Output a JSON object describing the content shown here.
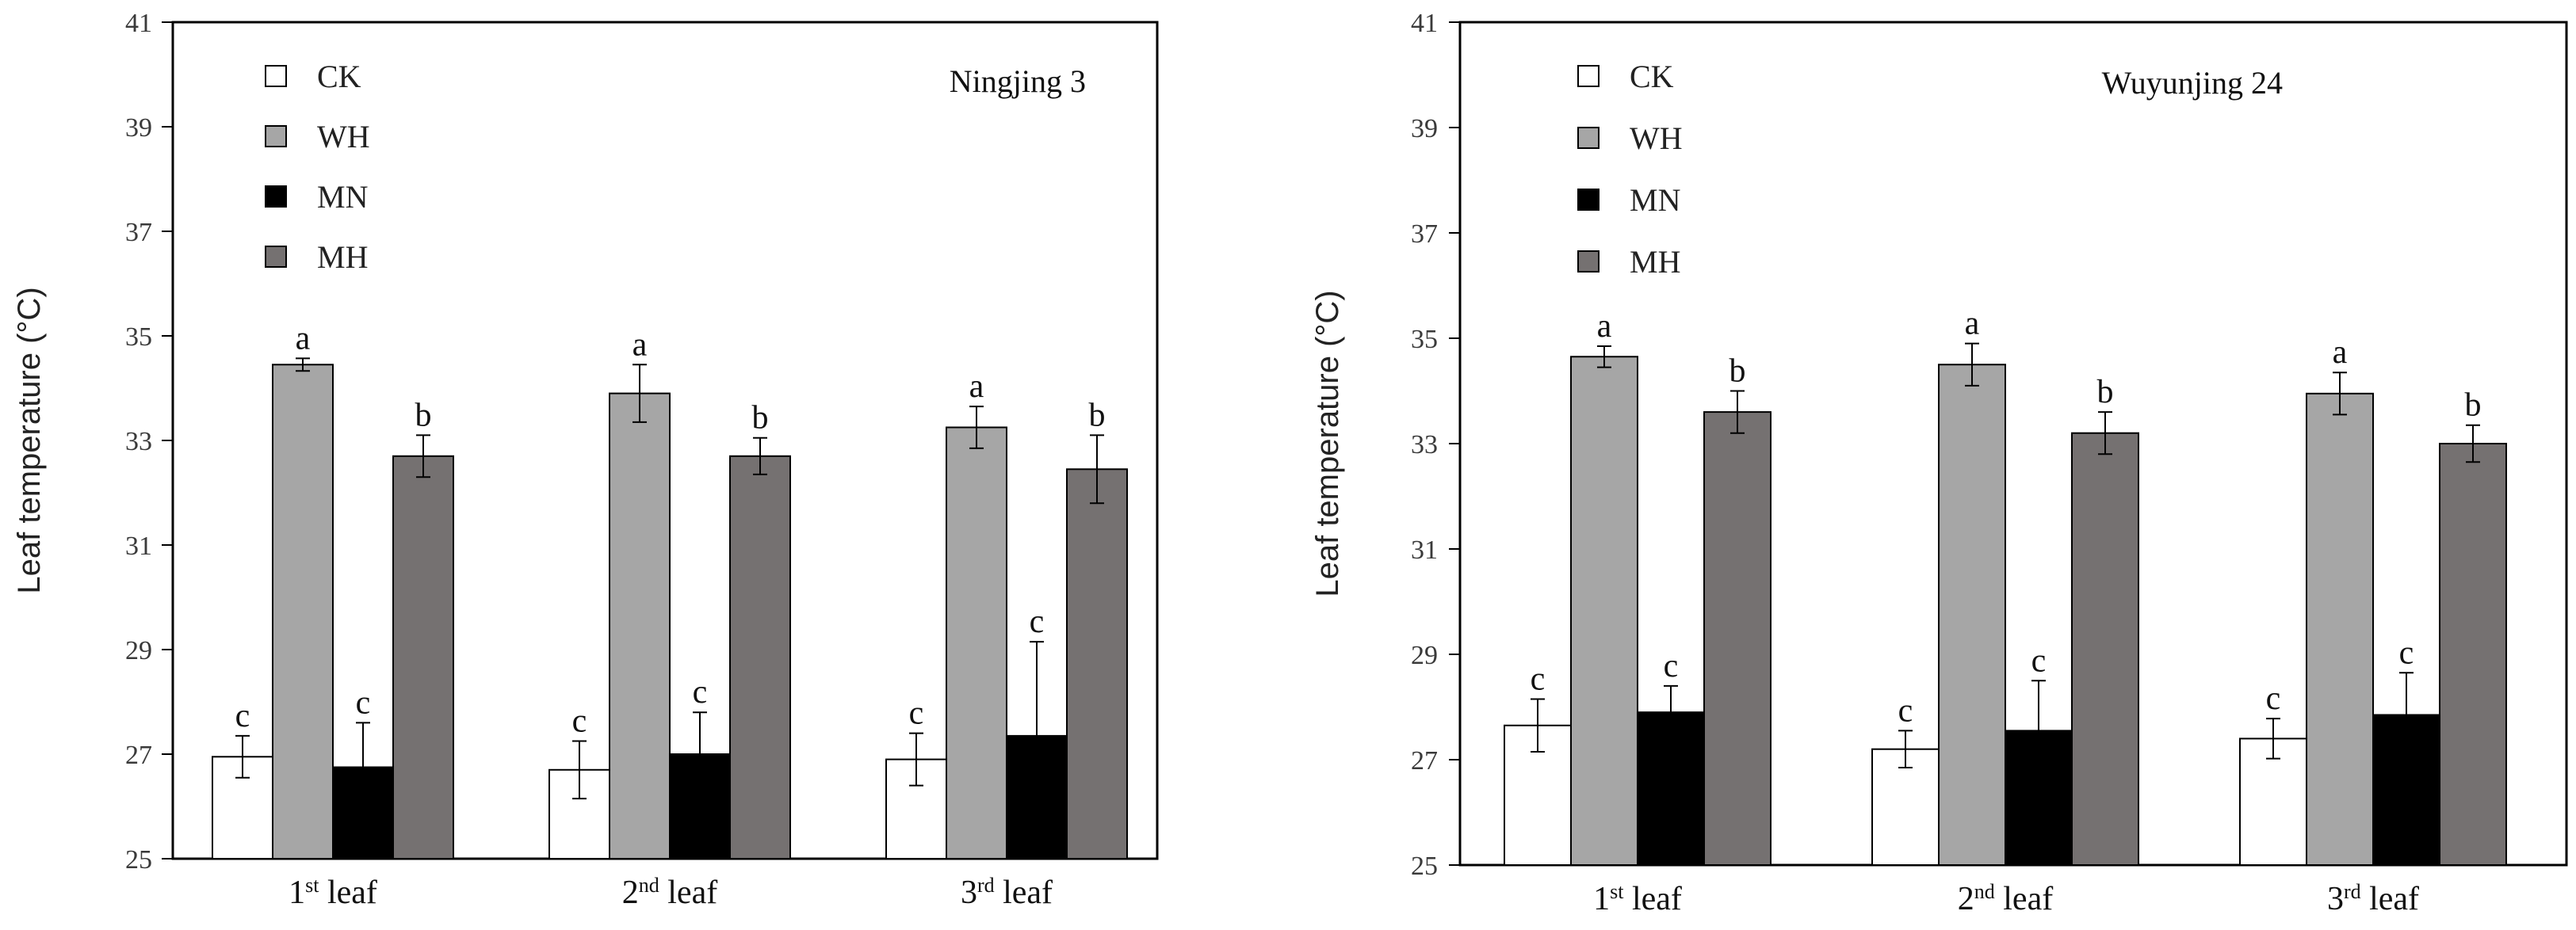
{
  "chart_data": [
    {
      "type": "bar",
      "title": "Ningjing 3",
      "ylabel": "Leaf temperature (°C)",
      "ylim": [
        25,
        41
      ],
      "yticks": [
        "25",
        "27",
        "29",
        "31",
        "33",
        "35",
        "37",
        "39",
        "41"
      ],
      "categories": [
        {
          "base": "1",
          "sup": "st",
          "tail": " leaf"
        },
        {
          "base": "2",
          "sup": "nd",
          "tail": " leaf"
        },
        {
          "base": "3",
          "sup": "rd",
          "tail": " leaf"
        }
      ],
      "series": [
        {
          "name": "CK",
          "color": "#ffffff",
          "values": [
            26.95,
            26.7,
            26.9
          ],
          "errors": [
            0.4,
            0.55,
            0.5
          ],
          "letters": [
            "c",
            "c",
            "c"
          ]
        },
        {
          "name": "WH",
          "color": "#a6a6a6",
          "values": [
            34.45,
            33.9,
            33.25
          ],
          "errors": [
            0.12,
            0.55,
            0.4
          ],
          "letters": [
            "a",
            "a",
            "a"
          ]
        },
        {
          "name": "MN",
          "color": "#000000",
          "values": [
            26.75,
            27.0,
            27.35
          ],
          "errors": [
            0.85,
            0.8,
            1.8
          ],
          "letters": [
            "c",
            "c",
            "c"
          ]
        },
        {
          "name": "MH",
          "color": "#757171",
          "values": [
            32.7,
            32.7,
            32.45
          ],
          "errors": [
            0.4,
            0.35,
            0.65
          ],
          "letters": [
            "b",
            "b",
            "b"
          ]
        }
      ]
    },
    {
      "type": "bar",
      "title": "Wuyunjing 24",
      "ylabel": "Leaf  temperature (°C)",
      "ylim": [
        25,
        41
      ],
      "yticks": [
        "25",
        "27",
        "29",
        "31",
        "33",
        "35",
        "37",
        "39",
        "41"
      ],
      "categories": [
        {
          "base": "1",
          "sup": "st",
          "tail": " leaf"
        },
        {
          "base": "2",
          "sup": "nd",
          "tail": " leaf"
        },
        {
          "base": "3",
          "sup": "rd",
          "tail": " leaf"
        }
      ],
      "series": [
        {
          "name": "CK",
          "color": "#ffffff",
          "values": [
            27.65,
            27.2,
            27.4
          ],
          "errors": [
            0.5,
            0.35,
            0.38
          ],
          "letters": [
            "c",
            "c",
            "c"
          ]
        },
        {
          "name": "WH",
          "color": "#a6a6a6",
          "values": [
            34.65,
            34.5,
            33.95
          ],
          "errors": [
            0.2,
            0.4,
            0.4
          ],
          "letters": [
            "a",
            "a",
            "a"
          ]
        },
        {
          "name": "MN",
          "color": "#000000",
          "values": [
            27.9,
            27.55,
            27.85
          ],
          "errors": [
            0.5,
            0.95,
            0.8
          ],
          "letters": [
            "c",
            "c",
            "c"
          ]
        },
        {
          "name": "MH",
          "color": "#757171",
          "values": [
            33.6,
            33.2,
            33.0
          ],
          "errors": [
            0.4,
            0.4,
            0.35
          ],
          "letters": [
            "b",
            "b",
            "b"
          ]
        }
      ]
    }
  ]
}
